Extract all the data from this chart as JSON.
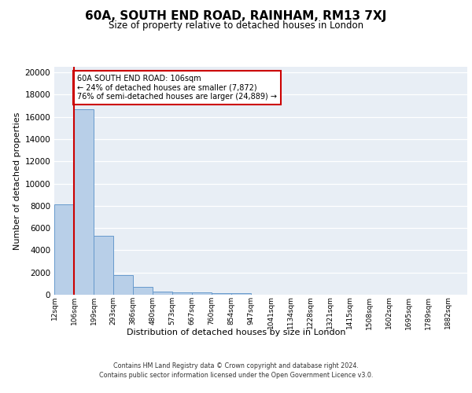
{
  "title": "60A, SOUTH END ROAD, RAINHAM, RM13 7XJ",
  "subtitle": "Size of property relative to detached houses in London",
  "xlabel": "Distribution of detached houses by size in London",
  "ylabel": "Number of detached properties",
  "bin_labels": [
    "12sqm",
    "106sqm",
    "199sqm",
    "293sqm",
    "386sqm",
    "480sqm",
    "573sqm",
    "667sqm",
    "760sqm",
    "854sqm",
    "947sqm",
    "1041sqm",
    "1134sqm",
    "1228sqm",
    "1321sqm",
    "1415sqm",
    "1508sqm",
    "1602sqm",
    "1695sqm",
    "1789sqm",
    "1882sqm"
  ],
  "bar_heights": [
    8100,
    16700,
    5300,
    1750,
    700,
    300,
    220,
    180,
    160,
    140,
    0,
    0,
    0,
    0,
    0,
    0,
    0,
    0,
    0,
    0,
    0
  ],
  "bar_color": "#b8cfe8",
  "bar_edge_color": "#6699cc",
  "bar_edge_width": 0.7,
  "vline_color": "#cc0000",
  "annotation_box_color": "#ffffff",
  "annotation_box_edge": "#cc0000",
  "property_label": "60A SOUTH END ROAD: 106sqm",
  "pct_smaller": "24% of detached houses are smaller (7,872)",
  "pct_larger": "76% of semi-detached houses are larger (24,889)",
  "ylim": [
    0,
    20500
  ],
  "yticks": [
    0,
    2000,
    4000,
    6000,
    8000,
    10000,
    12000,
    14000,
    16000,
    18000,
    20000
  ],
  "background_color": "#e8eef5",
  "footer_line1": "Contains HM Land Registry data © Crown copyright and database right 2024.",
  "footer_line2": "Contains public sector information licensed under the Open Government Licence v3.0."
}
